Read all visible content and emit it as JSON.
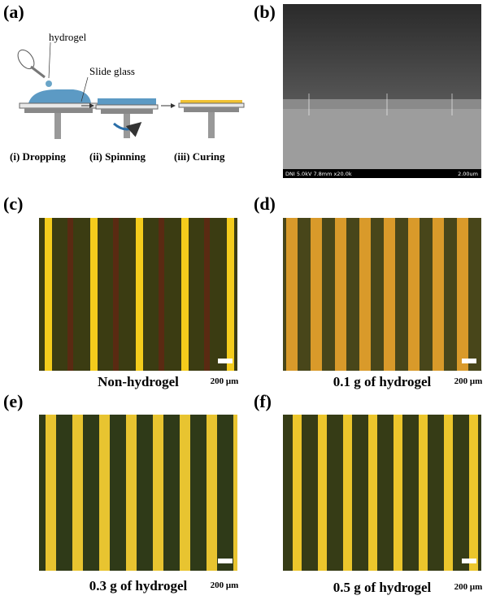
{
  "panel_a": {
    "label": "(a)",
    "hydrogel": "hydrogel",
    "slide_glass": "Slide glass",
    "steps": [
      "(i) Dropping",
      "(ii) Spinning",
      "(iii) Curing"
    ]
  },
  "panel_b": {
    "label": "(b)",
    "info": "DNI 5.0kV 7.8mm x20.0k",
    "scale": "2.00um"
  },
  "panel_c": {
    "label": "(c)",
    "caption": "Non-hydrogel",
    "scale": "200 μm"
  },
  "panel_d": {
    "label": "(d)",
    "caption": "0.1 g of hydrogel",
    "scale": "200 μm"
  },
  "panel_e": {
    "label": "(e)",
    "caption": "0.3 g of hydrogel",
    "scale": "200 μm"
  },
  "panel_f": {
    "label": "(f)",
    "caption": "0.5 g of hydrogel",
    "scale": "200 μm"
  }
}
